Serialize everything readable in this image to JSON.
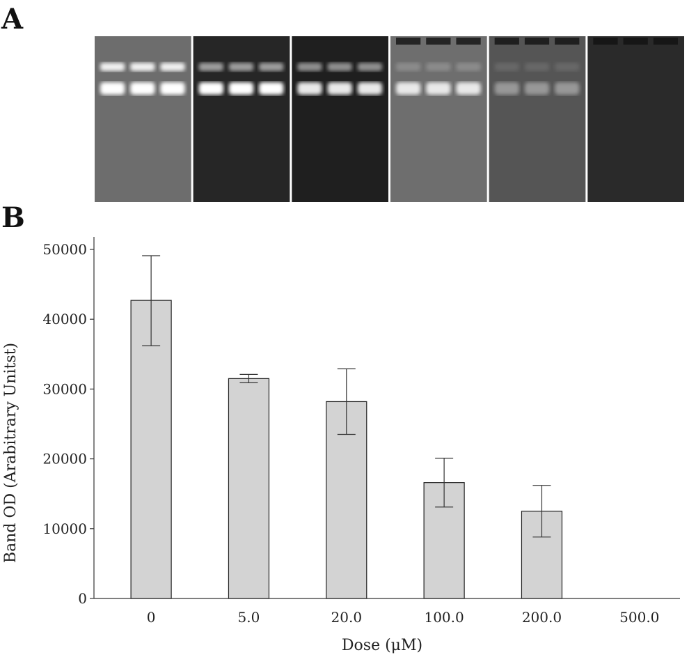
{
  "figure": {
    "panel_a_label": "A",
    "panel_b_label": "B"
  },
  "gel": {
    "lanes": [
      {
        "bg": "#6d6d6d",
        "band_color": "#ffffff",
        "upper_band": 0.9,
        "lower_band": 1.0,
        "lanes_per_panel": 3
      },
      {
        "bg": "#262626",
        "band_color": "#ffffff",
        "upper_band": 0.55,
        "lower_band": 1.0,
        "lanes_per_panel": 3
      },
      {
        "bg": "#1f1f1f",
        "band_color": "#ffffff",
        "upper_band": 0.5,
        "lower_band": 0.9,
        "lanes_per_panel": 3
      },
      {
        "bg": "#6e6e6e",
        "band_color": "#ffffff",
        "upper_band": 0.2,
        "lower_band": 0.85,
        "lanes_per_panel": 3
      },
      {
        "bg": "#555555",
        "band_color": "#cfcfcf",
        "upper_band": 0.15,
        "lower_band": 0.55,
        "lanes_per_panel": 3
      },
      {
        "bg": "#2a2a2a",
        "band_color": "#ffffff",
        "upper_band": 0.0,
        "lower_band": 0.0,
        "lanes_per_panel": 3
      }
    ]
  },
  "chart_data": {
    "type": "bar",
    "categories": [
      "0",
      "5.0",
      "20.0",
      "100.0",
      "200.0",
      "500.0"
    ],
    "values": [
      42700,
      31500,
      28200,
      16600,
      12500,
      0
    ],
    "error_low": [
      36200,
      30900,
      23500,
      13100,
      8800,
      0
    ],
    "error_high": [
      49100,
      32100,
      32900,
      20100,
      16200,
      0
    ],
    "xlabel": "Dose (μM)",
    "ylabel": "Band OD (Arabitrary Unitst)",
    "ylim": [
      0,
      52000
    ],
    "yticks": [
      0,
      10000,
      20000,
      30000,
      40000,
      50000
    ],
    "bar_color": "#d3d3d3",
    "edge_color": "#222222",
    "grid": false
  }
}
